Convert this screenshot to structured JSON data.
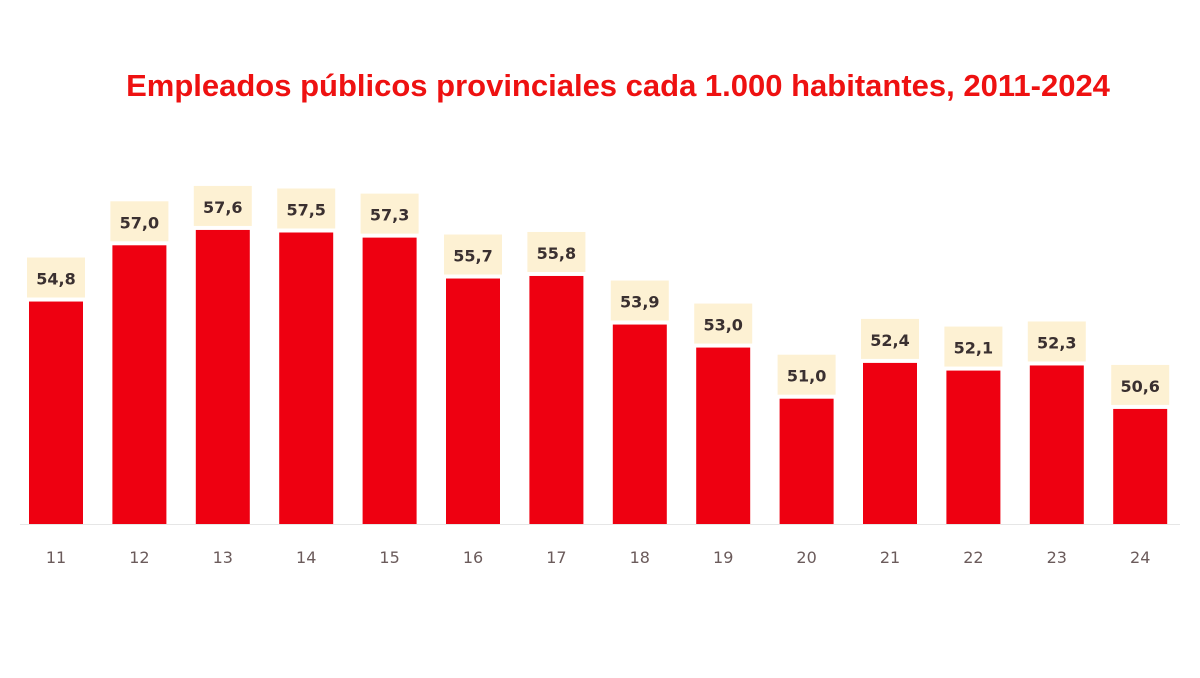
{
  "chart_data": {
    "type": "bar",
    "title": "Empleados públicos provinciales cada 1.000 habitantes, 2011-2024",
    "categories": [
      "11",
      "12",
      "13",
      "14",
      "15",
      "16",
      "17",
      "18",
      "19",
      "20",
      "21",
      "22",
      "23",
      "24"
    ],
    "values": [
      54.8,
      57.0,
      57.6,
      57.5,
      57.3,
      55.7,
      55.8,
      53.9,
      53.0,
      51.0,
      52.4,
      52.1,
      52.3,
      50.6
    ],
    "data_labels": [
      "54,8",
      "57,0",
      "57,6",
      "57,5",
      "57,3",
      "55,7",
      "55,8",
      "53,9",
      "53,0",
      "51,0",
      "52,4",
      "52,1",
      "52,3",
      "50,6"
    ],
    "xlabel": "",
    "ylabel": "",
    "ylim": [
      46.1,
      59
    ],
    "grid": false,
    "colors": {
      "bar": "#ee0011",
      "label_bg": "#fdf1d3",
      "title": "#ee1111",
      "tick": "#6b5b5b"
    }
  }
}
